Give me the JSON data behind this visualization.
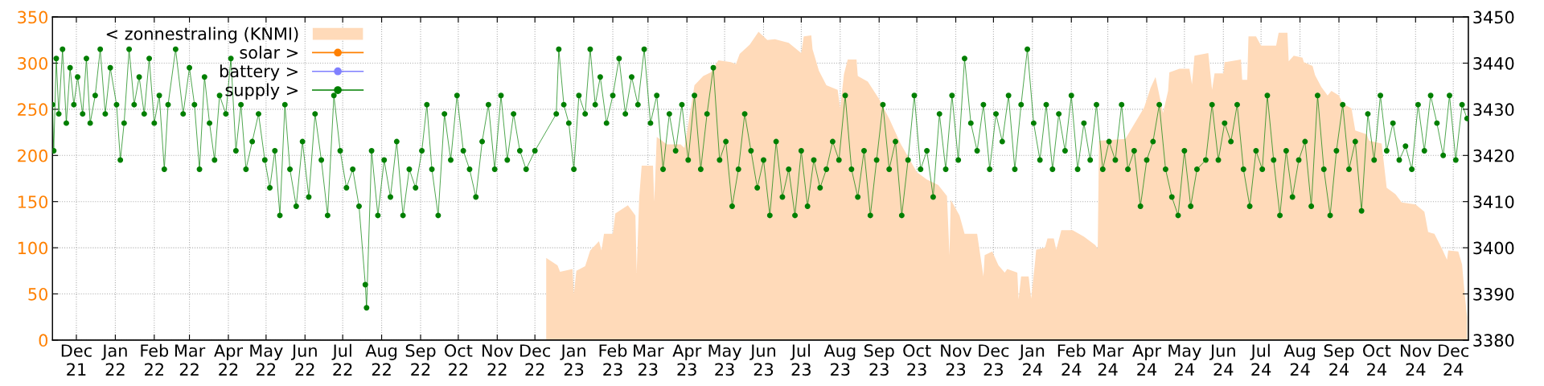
{
  "chart_data": {
    "type": "area",
    "xlim": [
      "2021-11-12",
      "2024-12-13"
    ],
    "xticks": [
      {
        "value": "2021-12-01",
        "label": "Dec\n21"
      },
      {
        "value": "2022-01-01",
        "label": "Jan\n22"
      },
      {
        "value": "2022-02-01",
        "label": "Feb\n22"
      },
      {
        "value": "2022-03-01",
        "label": "Mar\n22"
      },
      {
        "value": "2022-04-01",
        "label": "Apr\n22"
      },
      {
        "value": "2022-05-01",
        "label": "May\n22"
      },
      {
        "value": "2022-06-01",
        "label": "Jun\n22"
      },
      {
        "value": "2022-07-01",
        "label": "Jul\n22"
      },
      {
        "value": "2022-08-01",
        "label": "Aug\n22"
      },
      {
        "value": "2022-09-01",
        "label": "Sep\n22"
      },
      {
        "value": "2022-10-01",
        "label": "Oct\n22"
      },
      {
        "value": "2022-11-01",
        "label": "Nov\n22"
      },
      {
        "value": "2022-12-01",
        "label": "Dec\n22"
      },
      {
        "value": "2023-01-01",
        "label": "Jan\n23"
      },
      {
        "value": "2023-02-01",
        "label": "Feb\n23"
      },
      {
        "value": "2023-03-01",
        "label": "Mar\n23"
      },
      {
        "value": "2023-04-01",
        "label": "Apr\n23"
      },
      {
        "value": "2023-05-01",
        "label": "May\n23"
      },
      {
        "value": "2023-06-01",
        "label": "Jun\n23"
      },
      {
        "value": "2023-07-01",
        "label": "Jul\n23"
      },
      {
        "value": "2023-08-01",
        "label": "Aug\n23"
      },
      {
        "value": "2023-09-01",
        "label": "Sep\n23"
      },
      {
        "value": "2023-10-01",
        "label": "Oct\n23"
      },
      {
        "value": "2023-11-01",
        "label": "Nov\n23"
      },
      {
        "value": "2023-12-01",
        "label": "Dec\n23"
      },
      {
        "value": "2024-01-01",
        "label": "Jan\n24"
      },
      {
        "value": "2024-02-01",
        "label": "Feb\n24"
      },
      {
        "value": "2024-03-01",
        "label": "Mar\n24"
      },
      {
        "value": "2024-04-01",
        "label": "Apr\n24"
      },
      {
        "value": "2024-05-01",
        "label": "May\n24"
      },
      {
        "value": "2024-06-01",
        "label": "Jun\n24"
      },
      {
        "value": "2024-07-01",
        "label": "Jul\n24"
      },
      {
        "value": "2024-08-01",
        "label": "Aug\n24"
      },
      {
        "value": "2024-09-01",
        "label": "Sep\n24"
      },
      {
        "value": "2024-10-01",
        "label": "Oct\n24"
      },
      {
        "value": "2024-11-01",
        "label": "Nov\n24"
      },
      {
        "value": "2024-12-01",
        "label": "Dec\n24"
      }
    ],
    "ylim": [
      0,
      350
    ],
    "yticks": [
      0,
      50,
      100,
      150,
      200,
      250,
      300,
      350
    ],
    "y2lim": [
      3380,
      3450
    ],
    "y2ticks": [
      3380,
      3390,
      3400,
      3410,
      3420,
      3430,
      3440,
      3450
    ],
    "grid": true,
    "legend": "top left",
    "series": [
      {
        "name": "< zonnestraling (KNMI)",
        "color": "#ffdab9",
        "x": [
          "2022-12-10",
          "2022-12-19",
          "2022-12-21",
          "2022-12-31",
          "2023-01-01",
          "2023-01-03",
          "2023-01-10",
          "2023-01-14",
          "2023-01-21",
          "2023-01-23",
          "2023-01-25",
          "2023-02-01",
          "2023-02-03",
          "2023-02-13",
          "2023-02-19",
          "2023-02-20",
          "2023-02-22",
          "2023-02-24",
          "2023-03-05",
          "2023-03-06",
          "2023-03-08",
          "2023-03-16",
          "2023-03-27",
          "2023-03-30",
          "2023-04-07",
          "2023-04-14",
          "2023-04-20",
          "2023-04-26",
          "2023-05-06",
          "2023-05-10",
          "2023-05-13",
          "2023-05-21",
          "2023-05-28",
          "2023-06-04",
          "2023-06-10",
          "2023-06-21",
          "2023-07-01",
          "2023-07-03",
          "2023-07-09",
          "2023-07-10",
          "2023-07-15",
          "2023-07-21",
          "2023-07-30",
          "2023-08-01",
          "2023-08-04",
          "2023-08-07",
          "2023-08-14",
          "2023-08-15",
          "2023-08-23",
          "2023-09-01",
          "2023-09-09",
          "2023-09-18",
          "2023-10-01",
          "2023-10-09",
          "2023-10-18",
          "2023-10-25",
          "2023-10-27",
          "2023-10-28",
          "2023-11-04",
          "2023-11-08",
          "2023-11-18",
          "2023-11-23",
          "2023-11-24",
          "2023-11-30",
          "2023-12-05",
          "2023-12-10",
          "2023-12-12",
          "2023-12-20",
          "2023-12-21",
          "2023-12-23",
          "2023-12-29",
          "2023-12-31",
          "2024-01-03",
          "2024-01-04",
          "2024-01-11",
          "2024-01-13",
          "2024-01-18",
          "2024-01-20",
          "2024-01-24",
          "2024-02-02",
          "2024-02-11",
          "2024-02-20",
          "2024-02-22",
          "2024-02-23",
          "2024-03-15",
          "2024-03-30",
          "2024-04-04",
          "2024-04-08",
          "2024-04-14",
          "2024-04-18",
          "2024-04-19",
          "2024-04-27",
          "2024-05-05",
          "2024-05-07",
          "2024-05-09",
          "2024-05-20",
          "2024-05-23",
          "2024-05-25",
          "2024-06-01",
          "2024-06-02",
          "2024-06-15",
          "2024-06-16",
          "2024-06-20",
          "2024-06-21",
          "2024-06-27",
          "2024-07-01",
          "2024-07-13",
          "2024-07-15",
          "2024-07-22",
          "2024-07-23",
          "2024-07-27",
          "2024-08-03",
          "2024-08-04",
          "2024-08-11",
          "2024-08-13",
          "2024-08-18",
          "2024-08-23",
          "2024-08-26",
          "2024-09-01",
          "2024-09-04",
          "2024-09-11",
          "2024-09-14",
          "2024-09-23",
          "2024-09-25",
          "2024-10-05",
          "2024-10-09",
          "2024-10-16",
          "2024-10-21",
          "2024-11-01",
          "2024-11-08",
          "2024-11-11",
          "2024-11-16",
          "2024-11-22",
          "2024-11-26",
          "2024-11-27",
          "2024-12-05",
          "2024-12-08",
          "2024-12-10",
          "2024-12-12"
        ],
        "values": [
          89,
          81,
          74,
          77,
          50,
          75,
          80,
          97,
          107,
          97,
          115,
          115,
          137,
          146,
          135,
          73,
          154,
          189,
          189,
          150,
          220,
          212,
          212,
          208,
          276,
          286,
          290,
          303,
          301,
          299,
          310,
          320,
          334,
          325,
          326,
          322,
          311,
          329,
          330,
          315,
          292,
          276,
          271,
          251,
          288,
          304,
          304,
          286,
          280,
          261,
          240,
          213,
          182,
          174,
          168,
          156,
          92,
          152,
          135,
          115,
          115,
          69,
          92,
          96,
          81,
          73,
          77,
          73,
          44,
          69,
          69,
          45,
          83,
          98,
          100,
          110,
          110,
          98,
          119,
          119,
          112,
          103,
          99,
          216,
          218,
          252,
          273,
          285,
          246,
          270,
          290,
          294,
          294,
          277,
          308,
          311,
          271,
          289,
          289,
          301,
          304,
          282,
          282,
          329,
          329,
          319,
          319,
          333,
          333,
          302,
          308,
          306,
          301,
          297,
          287,
          274,
          265,
          270,
          265,
          256,
          251,
          227,
          223,
          216,
          213,
          165,
          158,
          149,
          147,
          139,
          117,
          115,
          99,
          87,
          97,
          96,
          82,
          51,
          25
        ]
      },
      {
        "name": "solar >",
        "type": "line",
        "axis": "y2",
        "color": "#ff8000",
        "marker": "circle"
      },
      {
        "name": "battery >",
        "type": "line",
        "axis": "y2",
        "color": "#8080ff",
        "marker": "circle"
      },
      {
        "name": "supply >",
        "type": "line",
        "axis": "y2",
        "color": "#007f00",
        "marker": "circle",
        "x": [
          "2021-11-12",
          "2021-11-13",
          "2021-11-15",
          "2021-11-17",
          "2021-11-20",
          "2021-11-23",
          "2021-11-26",
          "2021-11-29",
          "2021-12-02",
          "2021-12-06",
          "2021-12-09",
          "2021-12-12",
          "2021-12-16",
          "2021-12-20",
          "2021-12-24",
          "2021-12-28",
          "2022-01-02",
          "2022-01-05",
          "2022-01-08",
          "2022-01-12",
          "2022-01-16",
          "2022-01-20",
          "2022-01-24",
          "2022-01-28",
          "2022-02-01",
          "2022-02-05",
          "2022-02-09",
          "2022-02-12",
          "2022-02-18",
          "2022-02-24",
          "2022-03-01",
          "2022-03-05",
          "2022-03-09",
          "2022-03-13",
          "2022-03-17",
          "2022-03-21",
          "2022-03-25",
          "2022-03-30",
          "2022-04-03",
          "2022-04-07",
          "2022-04-11",
          "2022-04-15",
          "2022-04-20",
          "2022-04-25",
          "2022-04-30",
          "2022-05-04",
          "2022-05-08",
          "2022-05-12",
          "2022-05-16",
          "2022-05-20",
          "2022-05-25",
          "2022-05-30",
          "2022-06-04",
          "2022-06-09",
          "2022-06-14",
          "2022-06-19",
          "2022-06-24",
          "2022-06-29",
          "2022-07-04",
          "2022-07-09",
          "2022-07-14",
          "2022-07-19",
          "2022-07-20",
          "2022-07-24",
          "2022-07-29",
          "2022-08-03",
          "2022-08-08",
          "2022-08-13",
          "2022-08-18",
          "2022-08-23",
          "2022-08-28",
          "2022-09-02",
          "2022-09-06",
          "2022-09-10",
          "2022-09-15",
          "2022-09-20",
          "2022-09-25",
          "2022-09-30",
          "2022-10-05",
          "2022-10-10",
          "2022-10-15",
          "2022-10-20",
          "2022-10-25",
          "2022-10-30",
          "2022-11-04",
          "2022-11-09",
          "2022-11-14",
          "2022-11-19",
          "2022-11-24",
          "2022-12-01",
          "2022-12-18",
          "2022-12-20",
          "2022-12-24",
          "2022-12-28",
          "2023-01-01",
          "2023-01-05",
          "2023-01-10",
          "2023-01-14",
          "2023-01-18",
          "2023-01-22",
          "2023-01-27",
          "2023-02-01",
          "2023-02-06",
          "2023-02-11",
          "2023-02-16",
          "2023-02-21",
          "2023-02-26",
          "2023-03-03",
          "2023-03-08",
          "2023-03-13",
          "2023-03-18",
          "2023-03-23",
          "2023-03-28",
          "2023-04-02",
          "2023-04-07",
          "2023-04-12",
          "2023-04-17",
          "2023-04-22",
          "2023-04-27",
          "2023-05-02",
          "2023-05-07",
          "2023-05-12",
          "2023-05-17",
          "2023-05-22",
          "2023-05-27",
          "2023-06-01",
          "2023-06-06",
          "2023-06-11",
          "2023-06-16",
          "2023-06-21",
          "2023-06-26",
          "2023-07-01",
          "2023-07-06",
          "2023-07-11",
          "2023-07-16",
          "2023-07-21",
          "2023-07-26",
          "2023-07-31",
          "2023-08-05",
          "2023-08-10",
          "2023-08-15",
          "2023-08-20",
          "2023-08-25",
          "2023-08-30",
          "2023-09-04",
          "2023-09-09",
          "2023-09-14",
          "2023-09-19",
          "2023-09-24",
          "2023-09-29",
          "2023-10-04",
          "2023-10-09",
          "2023-10-14",
          "2023-10-19",
          "2023-10-24",
          "2023-10-29",
          "2023-11-03",
          "2023-11-08",
          "2023-11-13",
          "2023-11-18",
          "2023-11-23",
          "2023-11-28",
          "2023-12-03",
          "2023-12-08",
          "2023-12-13",
          "2023-12-18",
          "2023-12-23",
          "2023-12-28",
          "2024-01-02",
          "2024-01-07",
          "2024-01-12",
          "2024-01-17",
          "2024-01-22",
          "2024-01-27",
          "2024-02-01",
          "2024-02-06",
          "2024-02-11",
          "2024-02-16",
          "2024-02-21",
          "2024-02-26",
          "2024-03-02",
          "2024-03-07",
          "2024-03-12",
          "2024-03-17",
          "2024-03-22",
          "2024-03-27",
          "2024-04-01",
          "2024-04-06",
          "2024-04-11",
          "2024-04-16",
          "2024-04-21",
          "2024-04-26",
          "2024-05-01",
          "2024-05-06",
          "2024-05-11",
          "2024-05-18",
          "2024-05-23",
          "2024-05-28",
          "2024-06-02",
          "2024-06-07",
          "2024-06-12",
          "2024-06-17",
          "2024-06-22",
          "2024-06-27",
          "2024-07-02",
          "2024-07-06",
          "2024-07-11",
          "2024-07-16",
          "2024-07-21",
          "2024-07-26",
          "2024-07-31",
          "2024-08-05",
          "2024-08-10",
          "2024-08-15",
          "2024-08-20",
          "2024-08-25",
          "2024-08-30",
          "2024-09-04",
          "2024-09-09",
          "2024-09-14",
          "2024-09-19",
          "2024-09-24",
          "2024-09-29",
          "2024-10-04",
          "2024-10-09",
          "2024-10-14",
          "2024-10-19",
          "2024-10-24",
          "2024-10-29",
          "2024-11-03",
          "2024-11-08",
          "2024-11-13",
          "2024-11-18",
          "2024-11-23",
          "2024-11-28",
          "2024-12-03",
          "2024-12-08",
          "2024-12-12"
        ],
        "values": [
          3431,
          3421,
          3441,
          3429,
          3443,
          3427,
          3439,
          3431,
          3437,
          3429,
          3441,
          3427,
          3433,
          3443,
          3429,
          3439,
          3431,
          3419,
          3427,
          3443,
          3431,
          3437,
          3429,
          3441,
          3427,
          3433,
          3417,
          3431,
          3443,
          3429,
          3439,
          3431,
          3417,
          3437,
          3427,
          3419,
          3433,
          3429,
          3441,
          3421,
          3431,
          3417,
          3423,
          3429,
          3419,
          3413,
          3421,
          3407,
          3431,
          3417,
          3409,
          3423,
          3411,
          3429,
          3419,
          3407,
          3433,
          3421,
          3413,
          3417,
          3409,
          3392,
          3387,
          3421,
          3407,
          3419,
          3411,
          3423,
          3407,
          3417,
          3413,
          3421,
          3431,
          3417,
          3407,
          3429,
          3419,
          3433,
          3421,
          3417,
          3411,
          3423,
          3431,
          3417,
          3433,
          3419,
          3429,
          3421,
          3417,
          3421,
          3429,
          3443,
          3431,
          3427,
          3417,
          3433,
          3429,
          3443,
          3431,
          3437,
          3427,
          3433,
          3441,
          3429,
          3437,
          3431,
          3443,
          3427,
          3433,
          3417,
          3429,
          3421,
          3431,
          3419,
          3433,
          3417,
          3429,
          3439,
          3419,
          3423,
          3409,
          3417,
          3429,
          3421,
          3413,
          3419,
          3407,
          3423,
          3411,
          3417,
          3407,
          3421,
          3409,
          3419,
          3413,
          3417,
          3423,
          3419,
          3433,
          3417,
          3411,
          3421,
          3407,
          3419,
          3431,
          3417,
          3423,
          3407,
          3419,
          3433,
          3417,
          3421,
          3411,
          3429,
          3417,
          3433,
          3419,
          3441,
          3427,
          3421,
          3431,
          3417,
          3429,
          3423,
          3433,
          3417,
          3431,
          3443,
          3427,
          3419,
          3431,
          3417,
          3429,
          3421,
          3433,
          3417,
          3427,
          3419,
          3431,
          3417,
          3423,
          3419,
          3431,
          3417,
          3421,
          3409,
          3419,
          3423,
          3431,
          3417,
          3411,
          3407,
          3421,
          3409,
          3417,
          3419,
          3431,
          3419,
          3427,
          3423,
          3431,
          3417,
          3409,
          3421,
          3417,
          3433,
          3419,
          3407,
          3421,
          3411,
          3419,
          3423,
          3409,
          3433,
          3417,
          3407,
          3421,
          3431,
          3417,
          3423,
          3408,
          3429,
          3419,
          3433,
          3421,
          3427,
          3419,
          3422,
          3417,
          3431,
          3421,
          3433,
          3427,
          3420,
          3433,
          3419,
          3431,
          3428
        ]
      }
    ]
  }
}
